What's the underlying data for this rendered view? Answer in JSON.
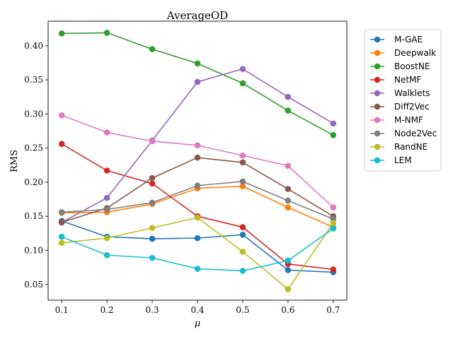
{
  "chart_data": {
    "type": "line",
    "title": "AverageOD",
    "xlabel": "μ",
    "ylabel": "RMS",
    "x": [
      0.1,
      0.2,
      0.3,
      0.4,
      0.5,
      0.6,
      0.7
    ],
    "x_tick_labels": [
      "0.1",
      "0.2",
      "0.3",
      "0.4",
      "0.5",
      "0.6",
      "0.7"
    ],
    "y_ticks": [
      0.05,
      0.1,
      0.15,
      0.2,
      0.25,
      0.3,
      0.35,
      0.4
    ],
    "y_tick_labels": [
      "0.05",
      "0.10",
      "0.15",
      "0.20",
      "0.25",
      "0.30",
      "0.35",
      "0.40"
    ],
    "xlim": [
      0.07,
      0.73
    ],
    "ylim": [
      0.027,
      0.436
    ],
    "grid": false,
    "legend_position": "outside-right-top",
    "series": [
      {
        "name": "M-GAE",
        "color": "#1f77b4",
        "values": [
          0.143,
          0.12,
          0.117,
          0.118,
          0.123,
          0.071,
          0.068
        ]
      },
      {
        "name": "Deepwalk",
        "color": "#ff7f0e",
        "values": [
          0.155,
          0.156,
          0.168,
          0.191,
          0.194,
          0.163,
          0.134
        ]
      },
      {
        "name": "BoostNE",
        "color": "#2ca02c",
        "values": [
          0.418,
          0.419,
          0.395,
          0.374,
          0.345,
          0.305,
          0.269
        ]
      },
      {
        "name": "NetMF",
        "color": "#d62728",
        "values": [
          0.256,
          0.217,
          0.198,
          0.15,
          0.134,
          0.08,
          0.072
        ]
      },
      {
        "name": "Walklets",
        "color": "#9467bd",
        "values": [
          0.141,
          0.177,
          0.261,
          0.347,
          0.366,
          0.325,
          0.286
        ]
      },
      {
        "name": "Diff2Vec",
        "color": "#8c564b",
        "values": [
          0.141,
          0.162,
          0.206,
          0.236,
          0.229,
          0.19,
          0.15
        ]
      },
      {
        "name": "M-NMF",
        "color": "#e377c2",
        "values": [
          0.298,
          0.273,
          0.26,
          0.254,
          0.239,
          0.224,
          0.163
        ]
      },
      {
        "name": "Node2Vec",
        "color": "#7f7f7f",
        "values": [
          0.156,
          0.16,
          0.17,
          0.195,
          0.201,
          0.173,
          0.146
        ]
      },
      {
        "name": "RandNE",
        "color": "#bcbd22",
        "values": [
          0.111,
          0.118,
          0.133,
          0.148,
          0.098,
          0.043,
          0.14
        ]
      },
      {
        "name": "LEM",
        "color": "#17becf",
        "values": [
          0.12,
          0.093,
          0.089,
          0.073,
          0.07,
          0.085,
          0.132
        ]
      }
    ]
  }
}
